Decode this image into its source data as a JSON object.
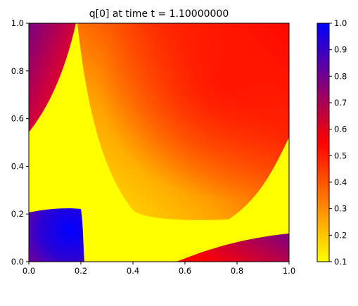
{
  "chart_data": {
    "type": "heatmap",
    "title": "q[0] at time t =     1.10000000",
    "xlabel": "",
    "ylabel": "",
    "xlim": [
      0.0,
      1.0
    ],
    "ylim": [
      0.0,
      1.0
    ],
    "x_ticks": [
      "0.0",
      "0.2",
      "0.4",
      "0.6",
      "0.8",
      "1.0"
    ],
    "y_ticks": [
      "0.0",
      "0.2",
      "0.4",
      "0.6",
      "0.8",
      "1.0"
    ],
    "colorbar": {
      "range": [
        0.1,
        1.0
      ],
      "ticks": [
        "0.1",
        "0.2",
        "0.3",
        "0.4",
        "0.5",
        "0.6",
        "0.7",
        "0.8",
        "0.9",
        "1.0"
      ],
      "colormap": [
        {
          "value": 0.1,
          "color": "#ffff00"
        },
        {
          "value": 0.55,
          "color": "#ff0000"
        },
        {
          "value": 1.0,
          "color": "#0000ff"
        }
      ]
    },
    "regions": [
      {
        "name": "yellow-background",
        "value": 0.1
      },
      {
        "name": "upper-right-ridge",
        "value_range": [
          0.25,
          0.6
        ]
      },
      {
        "name": "top-left-corner",
        "value_range": [
          0.55,
          0.8
        ]
      },
      {
        "name": "bottom-left-block",
        "value_range": [
          0.8,
          1.0
        ]
      },
      {
        "name": "bottom-right-corner",
        "value_range": [
          0.55,
          0.8
        ]
      }
    ],
    "grid": false,
    "legend": "none"
  }
}
